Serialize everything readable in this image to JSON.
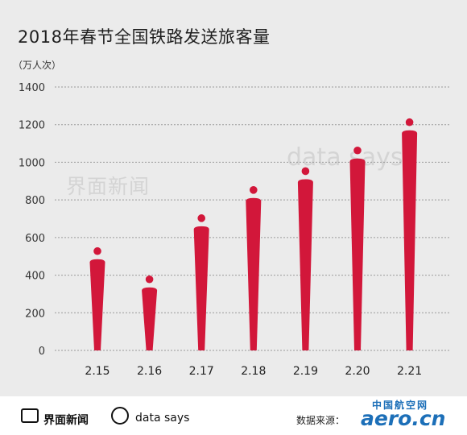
{
  "title": "2018年春节全国铁路发送旅客量",
  "unit_label": "（万人次）",
  "watermarks": {
    "jiemian": "界面新闻",
    "datasays": "data says"
  },
  "footer": {
    "logo_jiemian": "界面新闻",
    "logo_datasays": "data says",
    "source": "数据来源：",
    "brand_top": "中国航空网",
    "brand_main": "aero.cn"
  },
  "colors": {
    "bar": "#d2173a",
    "background": "#ebebeb",
    "grid": "#9a9a9a",
    "brand": "#1c6fb8"
  },
  "chart_data": {
    "type": "bar",
    "categories": [
      "2.15",
      "2.16",
      "2.17",
      "2.18",
      "2.19",
      "2.20",
      "2.21"
    ],
    "values": [
      485,
      335,
      660,
      810,
      910,
      1020,
      1170
    ],
    "ylabel": "（万人次）",
    "ylim": [
      0,
      1400
    ],
    "yticks": [
      0,
      200,
      400,
      600,
      800,
      1000,
      1200,
      1400
    ],
    "grid": true
  }
}
